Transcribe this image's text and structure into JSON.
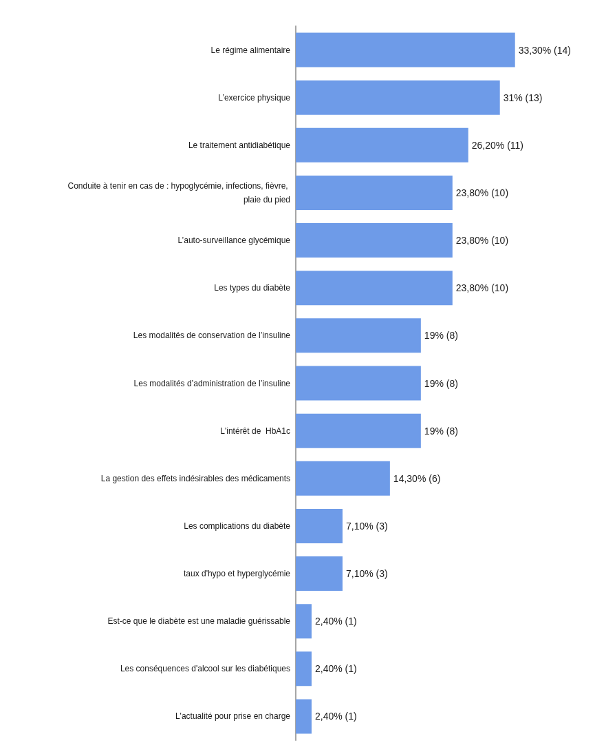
{
  "chart_data": {
    "type": "bar",
    "orientation": "horizontal",
    "grid": false,
    "categories": [
      "Le régime alimentaire",
      "L’exercice physique",
      "Le traitement antidiabétique",
      "Conduite à tenir en cas de : hypoglycémie, infections, fièvre, plaie du pied",
      "L’auto-surveillance glycémique",
      "Les types du diabète",
      "Les modalités de conservation de l’insuline",
      "Les modalités d’administration de l’insuline",
      "L'intérêt de  HbA1c",
      "La gestion des effets indésirables des médicaments",
      "Les complications du diabète",
      "taux d'hypo et hyperglycémie",
      "Est-ce que le diabète est une maladie guérissable",
      "Les conséquences d'alcool sur les diabétiques",
      "L'actualité pour prise en charge"
    ],
    "values": [
      33.3,
      31,
      26.2,
      23.8,
      23.8,
      23.8,
      19,
      19,
      19,
      14.3,
      7.1,
      7.1,
      2.4,
      2.4,
      2.4
    ],
    "value_labels": [
      "33,30% (14)",
      "31% (13)",
      "26,20% (11)",
      "23,80% (10)",
      "23,80% (10)",
      "23,80% (10)",
      "19% (8)",
      "19% (8)",
      "19% (8)",
      "14,30% (6)",
      "7,10% (3)",
      "7,10% (3)",
      "2,40% (1)",
      "2,40% (1)",
      "2,40% (1)"
    ],
    "color": "#6e9be8"
  }
}
